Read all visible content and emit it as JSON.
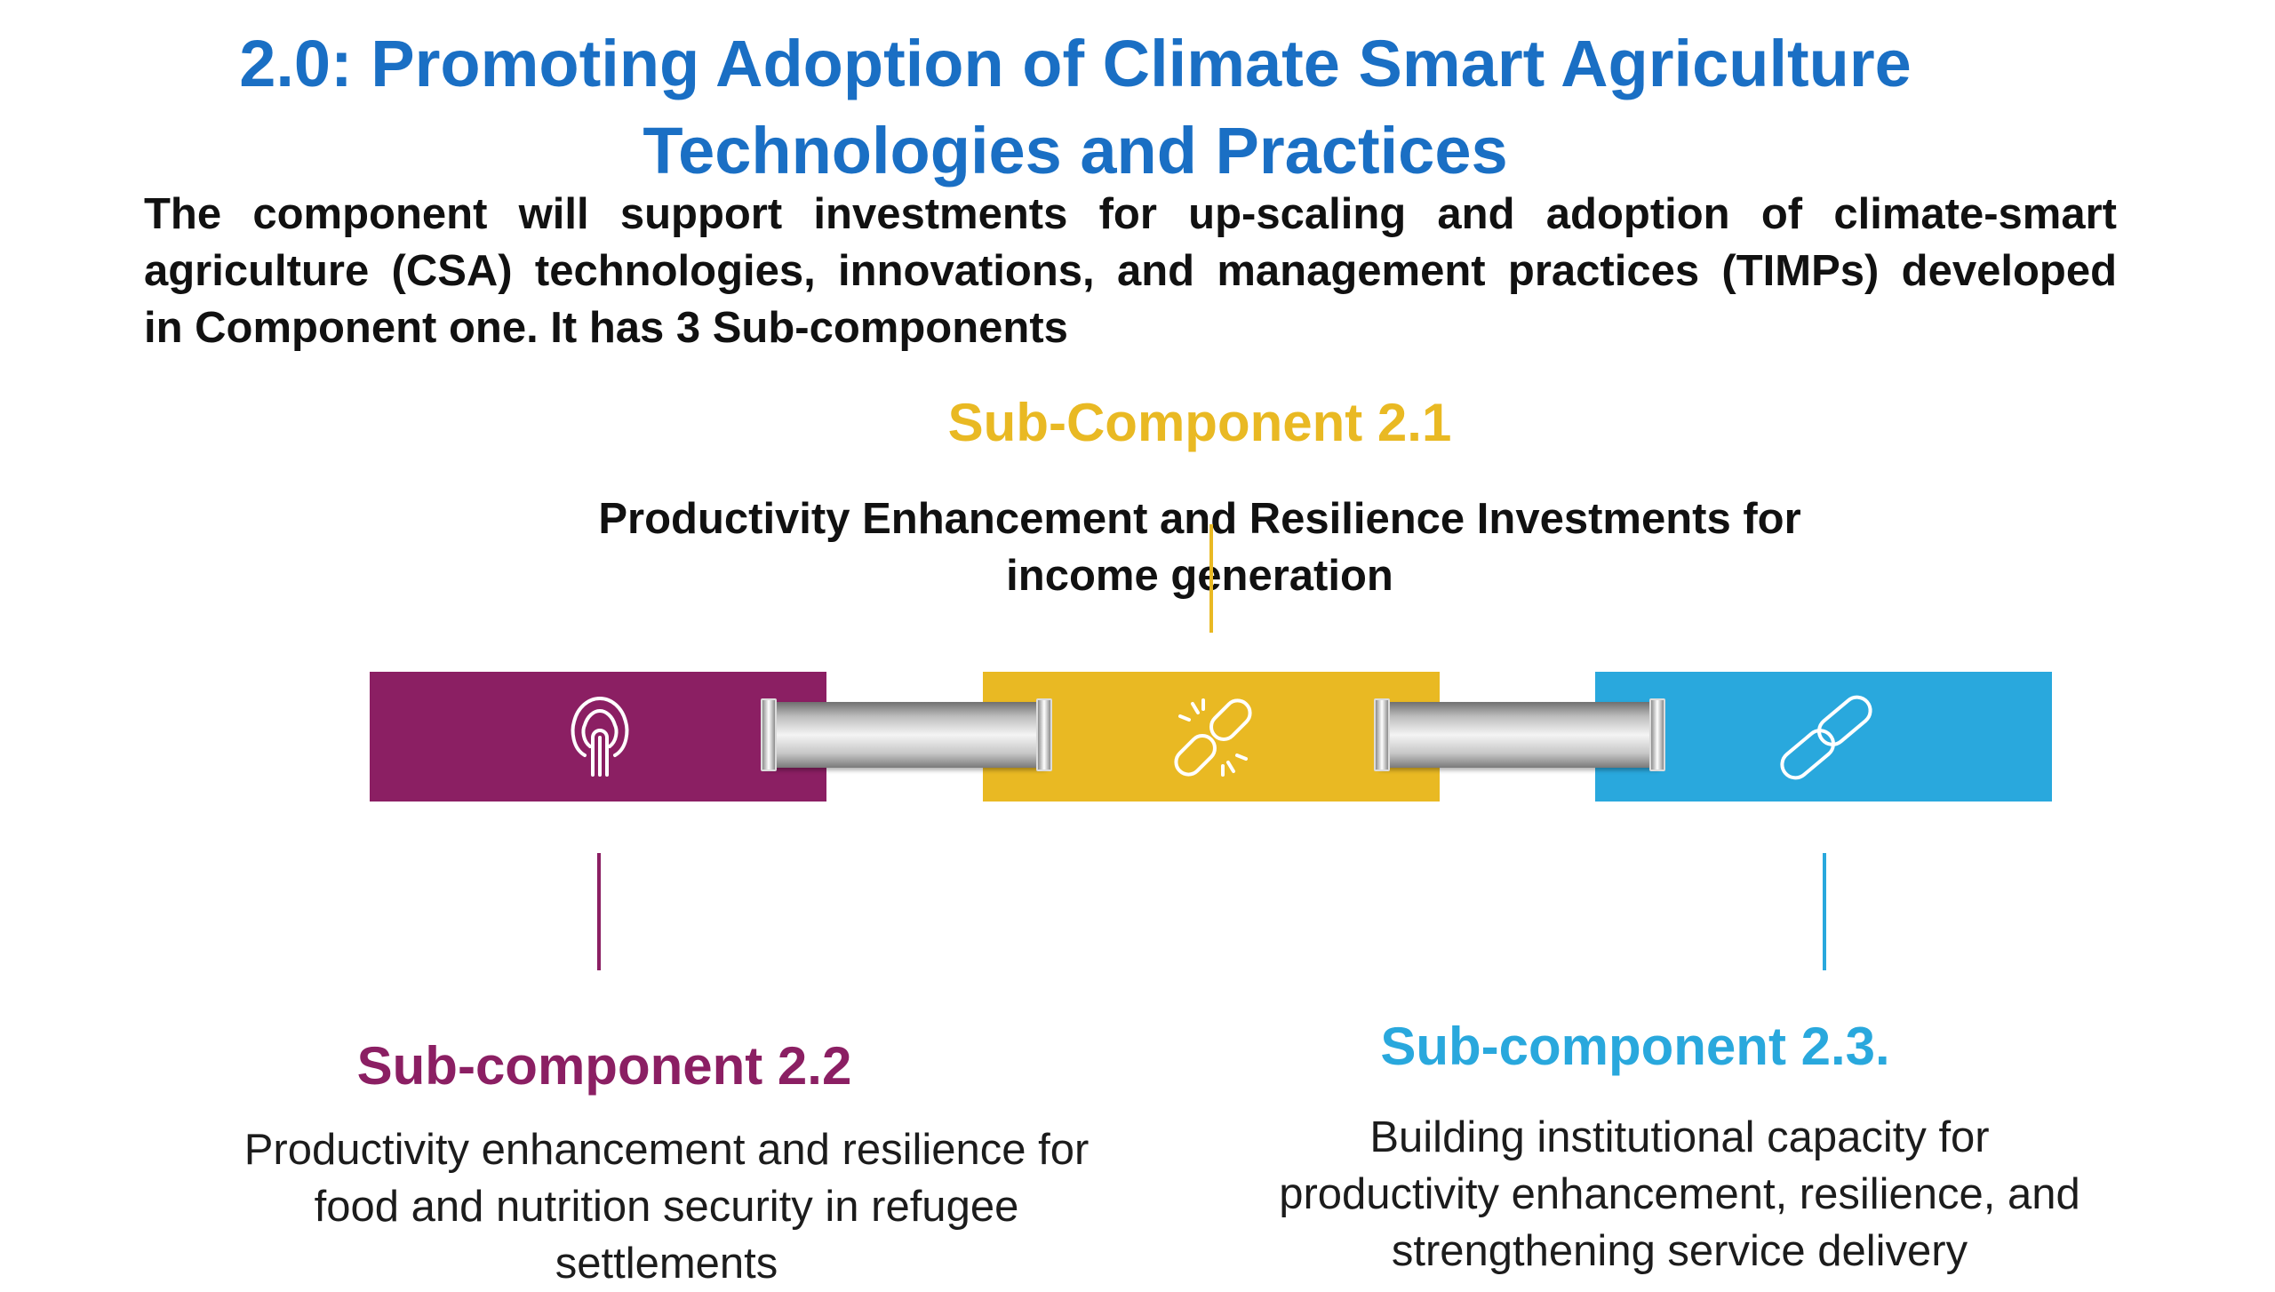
{
  "title": {
    "line1": "2.0: Promoting Adoption of Climate Smart Agriculture",
    "line2": "Technologies and Practices"
  },
  "description": {
    "line1": "The component will support investments for up-scaling and adoption of climate-smart",
    "line2": "agriculture (CSA) technologies, innovations, and management practices (TIMPs) developed",
    "line3": "in Component one. It has 3 Sub-components"
  },
  "subcomponents": [
    {
      "title": "Sub-Component 2.1",
      "desc": [
        "Productivity Enhancement and Resilience Investments for",
        "income generation"
      ],
      "color": "#e9b923",
      "icon": "broken-link-icon"
    },
    {
      "title": "Sub-component 2.2",
      "desc": [
        "Productivity enhancement and resilience for",
        "food and nutrition security in refugee",
        "settlements"
      ],
      "color": "#8b1f63",
      "icon": "touch-icon"
    },
    {
      "title": "Sub-component 2.3.",
      "desc": [
        "Building institutional capacity for",
        "productivity enhancement, resilience, and",
        "strengthening service delivery"
      ],
      "color": "#29a8dd",
      "icon": "link-icon"
    }
  ],
  "colors": {
    "title": "#1a6fc4",
    "purple": "#8b1f63",
    "yellow": "#e9b923",
    "blue": "#29a8dd"
  }
}
